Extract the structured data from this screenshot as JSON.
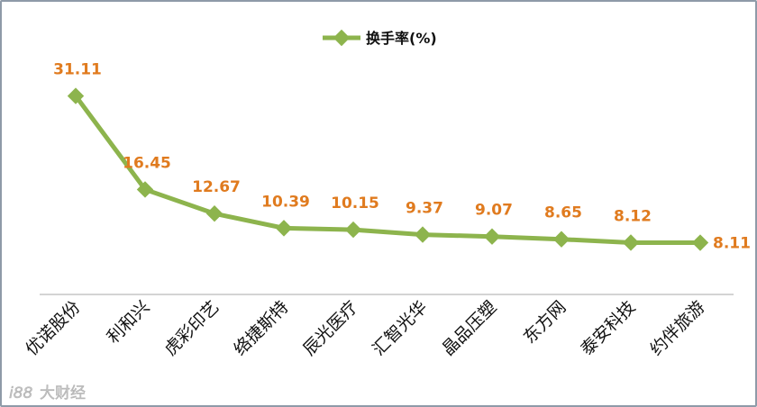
{
  "chart_data": {
    "type": "line",
    "title": "",
    "legend": {
      "entries": [
        "换手率(%)"
      ],
      "placement": "top-center"
    },
    "series": [
      {
        "name": "换手率(%)",
        "color": "#8db44d",
        "values": [
          31.11,
          16.45,
          12.67,
          10.39,
          10.15,
          9.37,
          9.07,
          8.65,
          8.12,
          8.11
        ]
      }
    ],
    "categories": [
      "优诺股份",
      "利和兴",
      "虎彩印艺",
      "络捷斯特",
      "辰光医疗",
      "汇智光华",
      "晶品压塑",
      "东方网",
      "泰安科技",
      "约伴旅游"
    ],
    "data_labels": [
      "31.11",
      "16.45",
      "12.67",
      "10.39",
      "10.15",
      "9.37",
      "9.07",
      "8.65",
      "8.12",
      "8.11"
    ],
    "xlabel": "",
    "ylabel": "",
    "ylim": [
      0,
      35
    ],
    "grid": false,
    "label_color": "#e07b1f"
  },
  "watermark": {
    "text": "大财经",
    "glyph": "i88"
  }
}
